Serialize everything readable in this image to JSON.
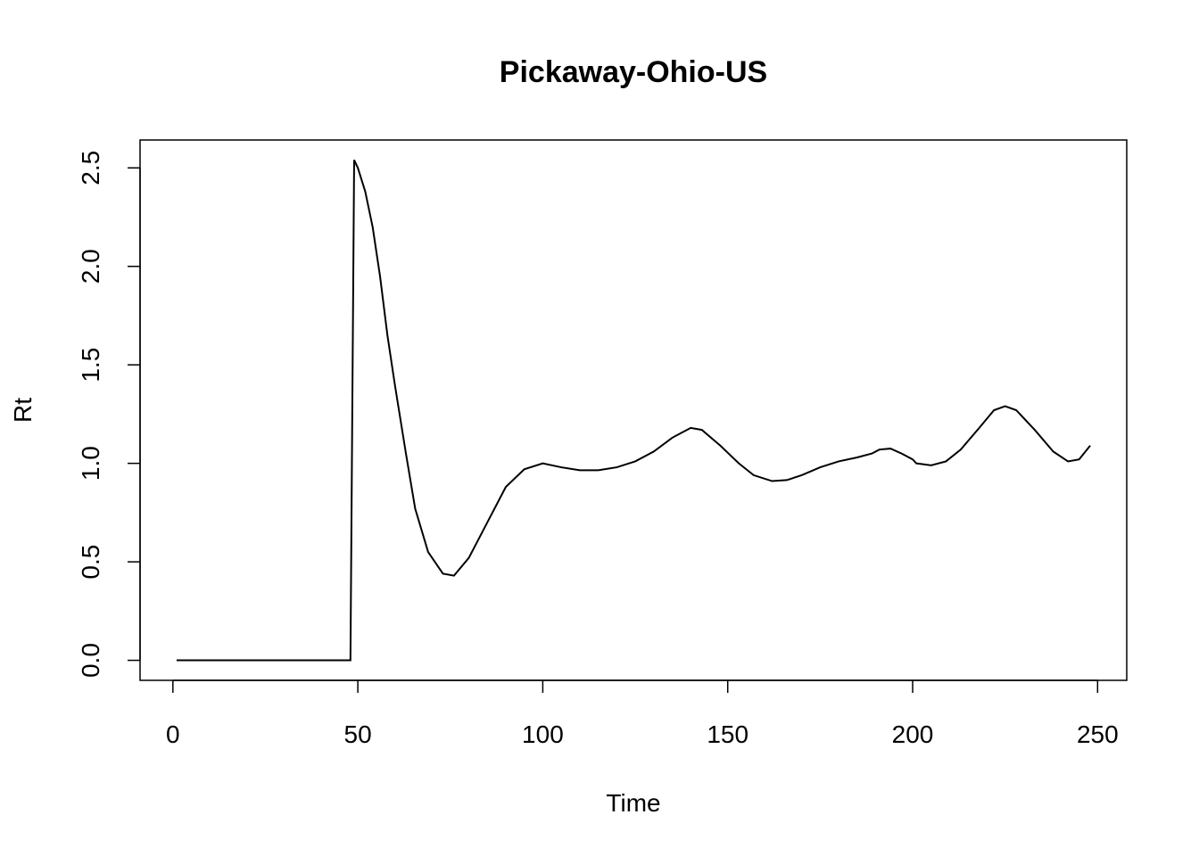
{
  "chart_data": {
    "type": "line",
    "title": "Pickaway-Ohio-US",
    "x_label": "Time",
    "y_label": "Rt",
    "x": [
      1,
      48,
      49,
      50,
      52,
      54,
      56,
      58,
      60,
      63,
      65.5,
      69,
      73,
      76,
      80,
      85,
      90,
      95,
      100,
      105,
      110,
      115,
      120,
      125,
      130,
      135,
      140,
      143,
      148,
      153,
      157,
      162,
      166,
      170,
      175,
      180,
      185,
      189,
      191,
      194,
      197,
      200,
      201,
      205,
      209,
      213,
      218,
      222,
      225,
      228,
      233,
      238,
      242,
      245,
      248
    ],
    "values": [
      0,
      0,
      2.54,
      2.5,
      2.38,
      2.2,
      1.95,
      1.65,
      1.4,
      1.05,
      0.77,
      0.55,
      0.44,
      0.43,
      0.52,
      0.7,
      0.88,
      0.97,
      1.0,
      0.98,
      0.965,
      0.965,
      0.98,
      1.01,
      1.06,
      1.13,
      1.18,
      1.17,
      1.09,
      1.0,
      0.94,
      0.91,
      0.915,
      0.94,
      0.98,
      1.01,
      1.03,
      1.05,
      1.07,
      1.075,
      1.05,
      1.02,
      1.0,
      0.99,
      1.01,
      1.07,
      1.18,
      1.27,
      1.29,
      1.27,
      1.17,
      1.06,
      1.01,
      1.02,
      1.09
    ],
    "color": "#000000",
    "xlim": [
      -8.88,
      257.88
    ],
    "xticks": [
      0,
      50,
      100,
      150,
      200,
      250
    ],
    "ylim": [
      -0.1016,
      2.6416
    ],
    "yticks": [
      {
        "value": 0,
        "label": "0.0"
      },
      0.5,
      {
        "value": 1,
        "label": "1.0"
      },
      1.5,
      {
        "value": 2,
        "label": "2.0"
      },
      2.5
    ]
  }
}
